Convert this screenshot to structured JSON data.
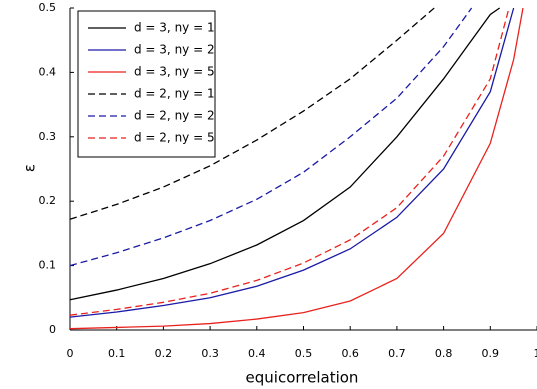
{
  "chart_data": {
    "type": "line",
    "x_label": "equicorrelation",
    "y_label": "ε",
    "xlim": [
      0,
      1
    ],
    "ylim": [
      0,
      0.5
    ],
    "xticks": [
      0,
      0.1,
      0.2,
      0.3,
      0.4,
      0.5,
      0.6,
      0.7,
      0.8,
      0.9,
      1
    ],
    "yticks": [
      0,
      0.1,
      0.2,
      0.3,
      0.4,
      0.5
    ],
    "legend": "upper-left",
    "series": [
      {
        "name": "d = 3, ny = 1",
        "color": "#000000",
        "dash": false,
        "x": [
          0,
          0.1,
          0.2,
          0.3,
          0.4,
          0.5,
          0.6,
          0.7,
          0.8,
          0.85,
          0.9,
          0.92
        ],
        "values": [
          0.047,
          0.062,
          0.08,
          0.103,
          0.132,
          0.17,
          0.222,
          0.3,
          0.39,
          0.44,
          0.49,
          0.5
        ]
      },
      {
        "name": "d = 3, ny = 2",
        "color": "#1a1aa6",
        "dash": false,
        "x": [
          0,
          0.1,
          0.2,
          0.3,
          0.4,
          0.5,
          0.6,
          0.7,
          0.8,
          0.9,
          0.95
        ],
        "values": [
          0.02,
          0.028,
          0.038,
          0.05,
          0.068,
          0.093,
          0.126,
          0.175,
          0.25,
          0.37,
          0.5
        ]
      },
      {
        "name": "d = 3, ny = 5",
        "color": "#e8231f",
        "dash": false,
        "x": [
          0,
          0.1,
          0.2,
          0.3,
          0.4,
          0.5,
          0.6,
          0.7,
          0.8,
          0.9,
          0.95,
          0.97
        ],
        "values": [
          0.002,
          0.004,
          0.006,
          0.01,
          0.017,
          0.027,
          0.045,
          0.08,
          0.15,
          0.29,
          0.42,
          0.5
        ]
      },
      {
        "name": "d = 2, ny = 1",
        "color": "#000000",
        "dash": true,
        "x": [
          0,
          0.1,
          0.2,
          0.3,
          0.4,
          0.5,
          0.6,
          0.7,
          0.78
        ],
        "values": [
          0.172,
          0.195,
          0.222,
          0.255,
          0.295,
          0.34,
          0.39,
          0.45,
          0.5
        ]
      },
      {
        "name": "d = 2, ny = 2",
        "color": "#1a1aa6",
        "dash": true,
        "x": [
          0,
          0.1,
          0.2,
          0.3,
          0.4,
          0.5,
          0.6,
          0.7,
          0.8,
          0.86
        ],
        "values": [
          0.1,
          0.12,
          0.143,
          0.17,
          0.203,
          0.245,
          0.3,
          0.36,
          0.44,
          0.5
        ]
      },
      {
        "name": "d = 2, ny = 5",
        "color": "#e8231f",
        "dash": true,
        "x": [
          0,
          0.1,
          0.2,
          0.3,
          0.4,
          0.5,
          0.6,
          0.7,
          0.8,
          0.9,
          0.94
        ],
        "values": [
          0.023,
          0.032,
          0.043,
          0.057,
          0.077,
          0.104,
          0.14,
          0.19,
          0.27,
          0.39,
          0.5
        ]
      }
    ]
  }
}
